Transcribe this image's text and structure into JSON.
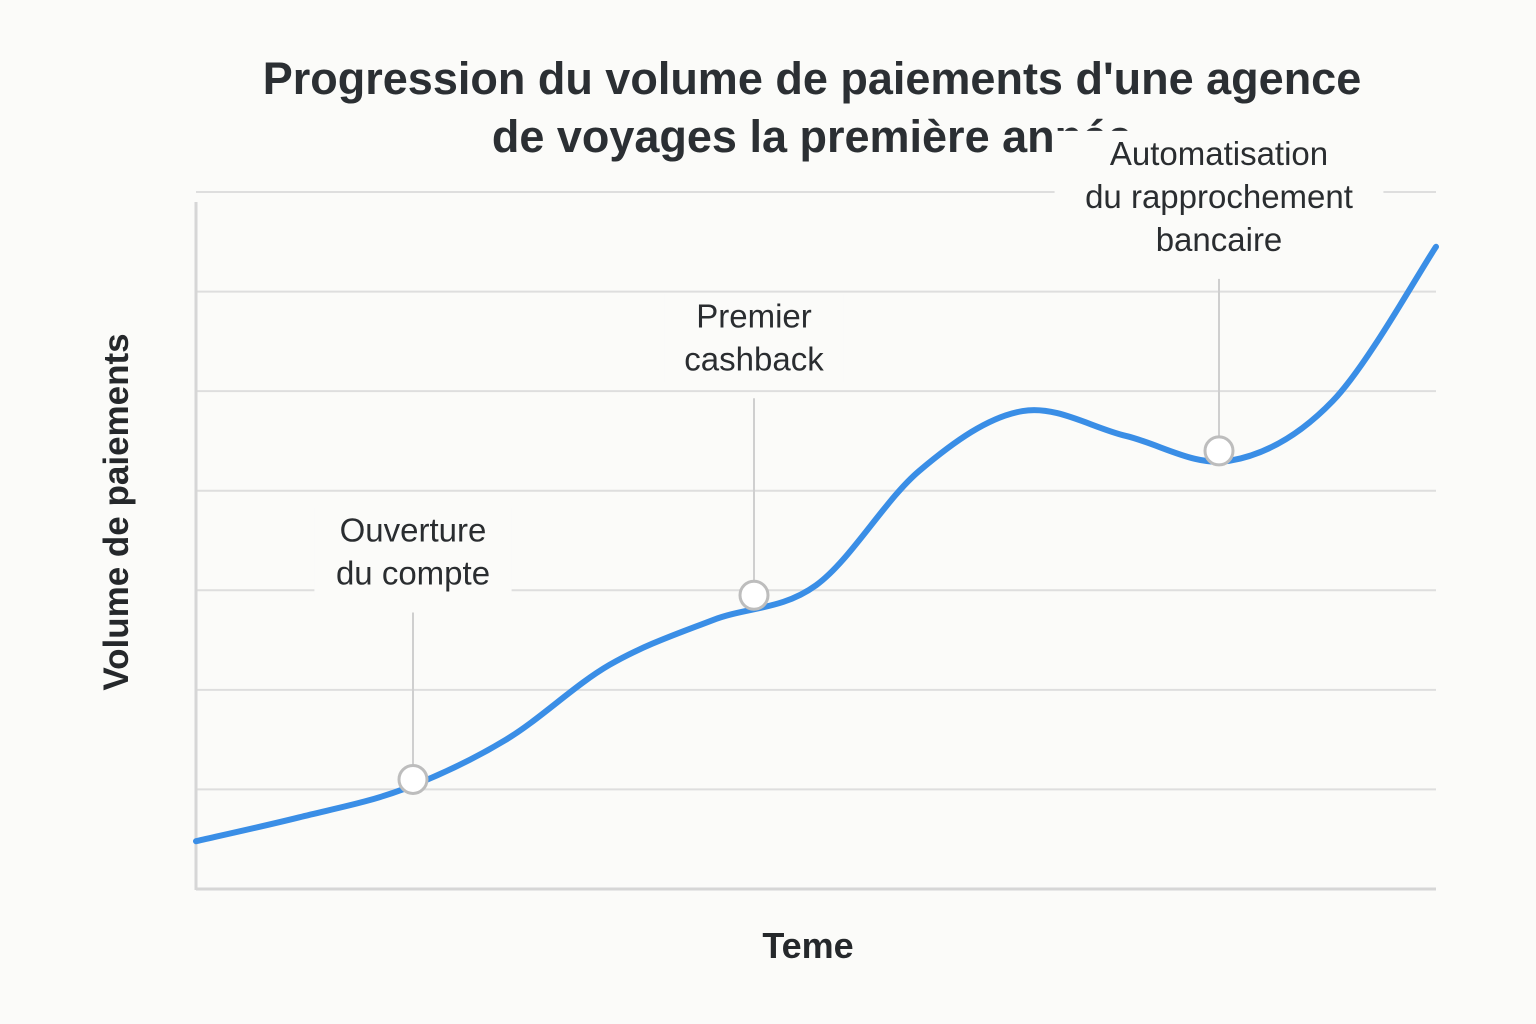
{
  "chart_data": {
    "type": "line",
    "title": [
      "Progression du volume de paiements d'une agence",
      "de voyages la première année"
    ],
    "xlabel": "Teme",
    "ylabel": "Volume de paiements",
    "x_tick_labels": [],
    "y_tick_labels": [],
    "grid": "horizontal",
    "ylim": [
      0,
      7
    ],
    "xlim": [
      0,
      12
    ],
    "series": [
      {
        "x": [
          0,
          1,
          2,
          3,
          4,
          5,
          6,
          7,
          8,
          9,
          10,
          11,
          12
        ],
        "values": [
          0.48,
          0.72,
          1.0,
          1.5,
          2.25,
          2.7,
          3.05,
          4.2,
          4.8,
          4.55,
          4.3,
          4.9,
          6.45
        ]
      }
    ],
    "annotations": [
      {
        "x": 2.1,
        "y": 1.1,
        "text": [
          "Ouverture",
          "du compte"
        ]
      },
      {
        "x": 5.4,
        "y": 2.95,
        "text": [
          "Premier",
          "cashback"
        ]
      },
      {
        "x": 9.9,
        "y": 4.4,
        "text": [
          "Automatisation",
          "du rapprochement",
          "bancaire"
        ]
      }
    ],
    "colors": {
      "line": "#3a8ee6",
      "grid": "#dedede",
      "axis": "#d6d6d6",
      "marker_fill": "#ffffff",
      "marker_stroke": "#bdbdbd",
      "leader": "#cfcfcf"
    }
  }
}
